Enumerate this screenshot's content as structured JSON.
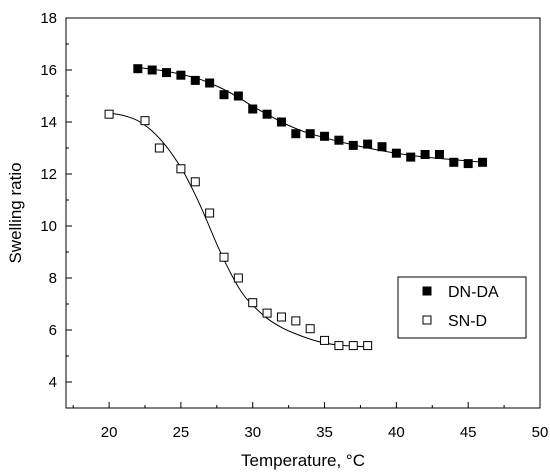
{
  "chart_data": {
    "type": "scatter",
    "xlabel": "Temperature, °C",
    "ylabel": "Swelling ratio",
    "xlim": [
      17,
      50
    ],
    "ylim": [
      3,
      18
    ],
    "x_ticks": [
      "20",
      "25",
      "30",
      "35",
      "40",
      "45",
      "50"
    ],
    "y_ticks": [
      "4",
      "6",
      "8",
      "10",
      "12",
      "14",
      "16",
      "18"
    ],
    "legend_position": "lower-right",
    "grid": false,
    "series": [
      {
        "name": "DN-DA",
        "marker": "filled-square",
        "x": [
          22,
          23,
          24,
          25,
          26,
          27,
          28,
          29,
          30,
          31,
          32,
          33,
          34,
          35,
          36,
          37,
          38,
          39,
          40,
          41,
          42,
          43,
          44,
          45,
          46
        ],
        "y": [
          16.05,
          16.0,
          15.9,
          15.8,
          15.6,
          15.5,
          15.05,
          15.0,
          14.5,
          14.3,
          14.0,
          13.55,
          13.55,
          13.45,
          13.3,
          13.1,
          13.15,
          13.05,
          12.8,
          12.65,
          12.75,
          12.75,
          12.45,
          12.4,
          12.45
        ]
      },
      {
        "name": "SN-D",
        "marker": "open-square",
        "x": [
          20,
          22.5,
          23.5,
          25,
          26,
          27,
          28,
          29,
          30,
          31,
          32,
          33,
          34,
          35,
          36,
          37,
          38
        ],
        "y": [
          14.3,
          14.05,
          13.0,
          12.2,
          11.7,
          10.5,
          8.8,
          8.0,
          7.05,
          6.65,
          6.5,
          6.35,
          6.05,
          5.6,
          5.4,
          5.4,
          5.4
        ]
      }
    ],
    "fit_curves": [
      {
        "series": "DN-DA",
        "x": [
          22,
          24,
          26,
          27,
          28,
          29,
          30,
          31,
          32,
          33,
          34,
          35,
          36,
          38,
          40,
          42,
          44,
          46
        ],
        "y": [
          16.1,
          15.95,
          15.7,
          15.5,
          15.25,
          14.95,
          14.6,
          14.3,
          14.0,
          13.75,
          13.55,
          13.4,
          13.25,
          13.0,
          12.8,
          12.65,
          12.55,
          12.45
        ]
      },
      {
        "series": "SN-D",
        "x": [
          20,
          21,
          22,
          23,
          24,
          25,
          25.5,
          26,
          26.5,
          27,
          27.5,
          28,
          28.5,
          29,
          29.5,
          30,
          31,
          32,
          33,
          34,
          35,
          36,
          37,
          38
        ],
        "y": [
          14.35,
          14.25,
          14.05,
          13.65,
          13.05,
          12.25,
          11.75,
          11.2,
          10.6,
          9.95,
          9.3,
          8.7,
          8.15,
          7.65,
          7.25,
          6.95,
          6.45,
          6.1,
          5.85,
          5.65,
          5.5,
          5.42,
          5.38,
          5.35
        ]
      }
    ]
  }
}
